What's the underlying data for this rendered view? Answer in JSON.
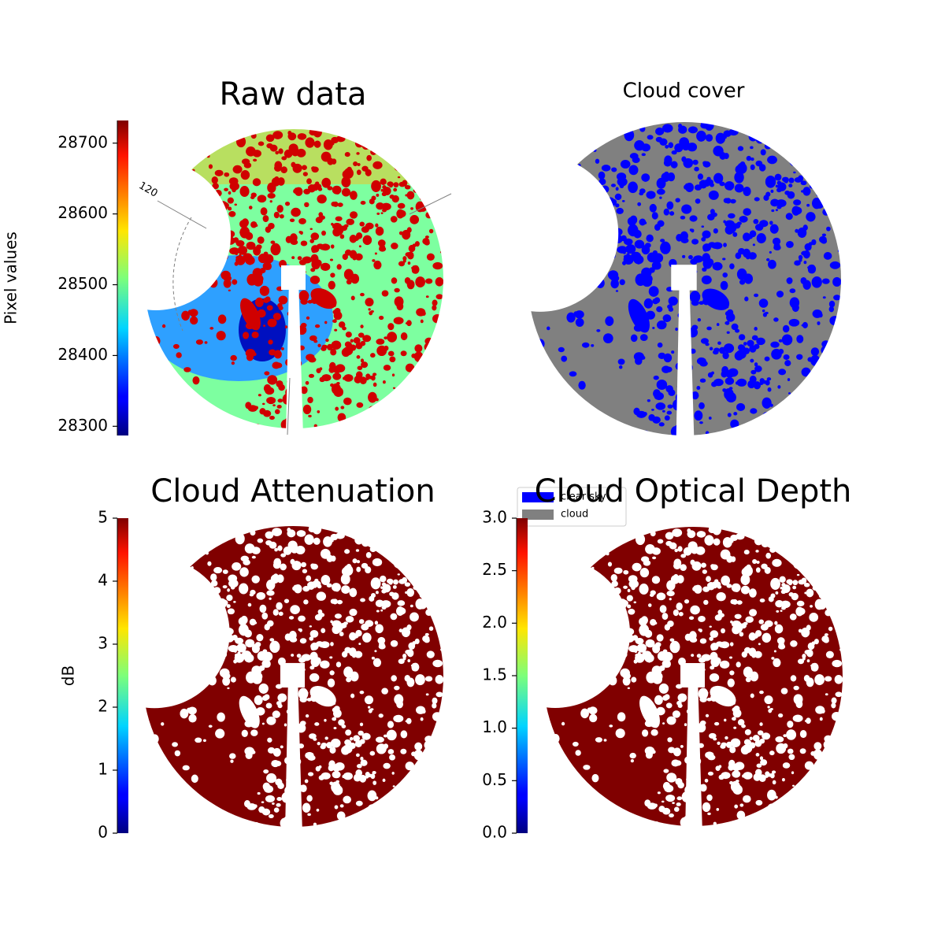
{
  "chart_data": [
    {
      "type": "image",
      "title": "Raw data",
      "colorbar_label": "Pixel values",
      "colormap": "jet",
      "ylim": [
        28287,
        28732
      ],
      "yticks": [
        28300,
        28400,
        28500,
        28600,
        28700
      ],
      "annotations": [
        "120"
      ]
    },
    {
      "type": "image",
      "title": "Cloud cover",
      "legend_entries": [
        {
          "name": "clear sky",
          "color": "#0000ff"
        },
        {
          "name": "cloud",
          "color": "#808080"
        }
      ]
    },
    {
      "type": "image",
      "title": "Cloud Attenuation",
      "colorbar_label": "dB",
      "colormap": "jet",
      "ylim": [
        0,
        5
      ],
      "yticks": [
        0,
        1,
        2,
        3,
        4,
        5
      ]
    },
    {
      "type": "image",
      "title": "Cloud Optical Depth",
      "colormap": "jet",
      "ylim": [
        0,
        3
      ],
      "yticks": [
        {
          "value": 0,
          "label": "0.0"
        },
        0.5,
        {
          "value": 1,
          "label": "1.0"
        },
        1.5,
        {
          "value": 2,
          "label": "2.0"
        },
        2.5,
        {
          "value": 3,
          "label": "3.0"
        }
      ]
    }
  ]
}
